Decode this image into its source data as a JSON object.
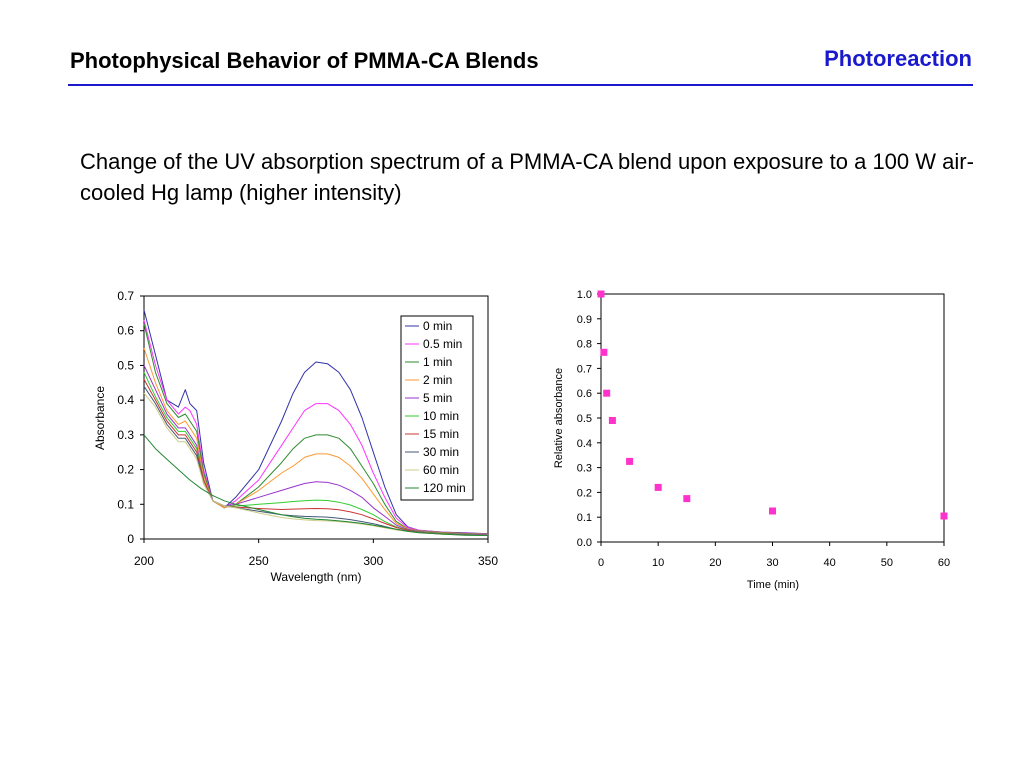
{
  "slide": {
    "title": "Photophysical Behavior of PMMA-CA Blends",
    "section_tag": "Photoreaction",
    "caption": "Change of the UV absorption spectrum of a PMMA-CA blend upon exposure to a 100 W air-cooled Hg lamp (higher intensity)",
    "accent_color": "#1a1acc"
  },
  "chart_data": [
    {
      "type": "line",
      "title": "",
      "xlabel": "Wavelength (nm)",
      "ylabel": "Absorbance",
      "xlim": [
        200,
        350
      ],
      "ylim": [
        0,
        0.7
      ],
      "xticks": [
        200,
        250,
        300,
        350
      ],
      "xtick_labels": [
        "200",
        "250",
        "300",
        "350"
      ],
      "yticks": [
        0,
        0.1,
        0.2,
        0.3,
        0.4,
        0.5,
        0.6,
        0.7
      ],
      "ytick_labels": [
        "0",
        "0.1",
        "0.2",
        "0.3",
        "0.4",
        "0.5",
        "0.6",
        "0.7"
      ],
      "grid": false,
      "legend_position": "top-right",
      "series": [
        {
          "name": "0 min",
          "color": "#3333aa",
          "x": [
            200,
            205,
            210,
            215,
            218,
            220,
            223,
            226,
            230,
            235,
            240,
            250,
            260,
            265,
            270,
            275,
            280,
            285,
            290,
            295,
            300,
            305,
            310,
            315,
            320,
            330,
            340,
            350
          ],
          "y": [
            0.66,
            0.53,
            0.4,
            0.38,
            0.43,
            0.39,
            0.37,
            0.22,
            0.11,
            0.09,
            0.12,
            0.2,
            0.34,
            0.42,
            0.48,
            0.51,
            0.505,
            0.48,
            0.43,
            0.35,
            0.25,
            0.15,
            0.07,
            0.035,
            0.025,
            0.02,
            0.018,
            0.015
          ]
        },
        {
          "name": "0.5 min",
          "color": "#ff33ff",
          "x": [
            200,
            205,
            210,
            215,
            218,
            220,
            223,
            226,
            230,
            235,
            240,
            250,
            260,
            265,
            270,
            275,
            280,
            285,
            290,
            295,
            300,
            305,
            310,
            315,
            320,
            330,
            340,
            350
          ],
          "y": [
            0.63,
            0.5,
            0.4,
            0.36,
            0.38,
            0.37,
            0.33,
            0.2,
            0.11,
            0.09,
            0.11,
            0.17,
            0.27,
            0.32,
            0.37,
            0.39,
            0.39,
            0.37,
            0.33,
            0.27,
            0.19,
            0.12,
            0.06,
            0.033,
            0.025,
            0.02,
            0.017,
            0.015
          ]
        },
        {
          "name": "1 min",
          "color": "#2e8b2e",
          "x": [
            200,
            205,
            210,
            215,
            218,
            220,
            223,
            226,
            230,
            235,
            240,
            250,
            260,
            265,
            270,
            275,
            280,
            285,
            290,
            295,
            300,
            305,
            310,
            315,
            320,
            330,
            340,
            350
          ],
          "y": [
            0.62,
            0.48,
            0.39,
            0.35,
            0.36,
            0.34,
            0.31,
            0.19,
            0.11,
            0.09,
            0.1,
            0.15,
            0.22,
            0.26,
            0.29,
            0.3,
            0.3,
            0.29,
            0.26,
            0.21,
            0.16,
            0.1,
            0.05,
            0.03,
            0.024,
            0.019,
            0.016,
            0.014
          ]
        },
        {
          "name": "2 min",
          "color": "#ff9933",
          "x": [
            200,
            205,
            210,
            215,
            218,
            220,
            223,
            226,
            230,
            235,
            240,
            250,
            260,
            265,
            270,
            275,
            280,
            285,
            290,
            295,
            300,
            305,
            310,
            315,
            320,
            330,
            340,
            350
          ],
          "y": [
            0.55,
            0.45,
            0.37,
            0.33,
            0.34,
            0.32,
            0.29,
            0.18,
            0.11,
            0.09,
            0.1,
            0.14,
            0.19,
            0.21,
            0.235,
            0.245,
            0.245,
            0.235,
            0.21,
            0.175,
            0.13,
            0.085,
            0.045,
            0.03,
            0.023,
            0.018,
            0.015,
            0.013
          ]
        },
        {
          "name": "5 min",
          "color": "#9933cc",
          "x": [
            200,
            205,
            210,
            215,
            218,
            220,
            223,
            226,
            230,
            235,
            240,
            250,
            260,
            265,
            270,
            275,
            280,
            285,
            290,
            295,
            300,
            305,
            310,
            315,
            320,
            330,
            340,
            350
          ],
          "y": [
            0.5,
            0.43,
            0.36,
            0.32,
            0.32,
            0.3,
            0.27,
            0.17,
            0.11,
            0.095,
            0.1,
            0.12,
            0.14,
            0.15,
            0.16,
            0.165,
            0.163,
            0.155,
            0.14,
            0.12,
            0.09,
            0.065,
            0.04,
            0.028,
            0.022,
            0.017,
            0.014,
            0.012
          ]
        },
        {
          "name": "10 min",
          "color": "#33cc33",
          "x": [
            200,
            205,
            210,
            215,
            218,
            220,
            223,
            226,
            230,
            235,
            240,
            250,
            260,
            265,
            270,
            275,
            280,
            285,
            290,
            295,
            300,
            305,
            310,
            315,
            320,
            330,
            340,
            350
          ],
          "y": [
            0.48,
            0.41,
            0.35,
            0.31,
            0.31,
            0.29,
            0.26,
            0.17,
            0.11,
            0.095,
            0.095,
            0.1,
            0.105,
            0.108,
            0.11,
            0.112,
            0.111,
            0.106,
            0.098,
            0.085,
            0.07,
            0.05,
            0.035,
            0.026,
            0.021,
            0.016,
            0.013,
            0.011
          ]
        },
        {
          "name": "15 min",
          "color": "#cc3333",
          "x": [
            200,
            205,
            210,
            215,
            218,
            220,
            223,
            226,
            230,
            235,
            240,
            250,
            260,
            265,
            270,
            275,
            280,
            285,
            290,
            295,
            300,
            305,
            310,
            315,
            320,
            330,
            340,
            350
          ],
          "y": [
            0.46,
            0.4,
            0.34,
            0.3,
            0.3,
            0.28,
            0.25,
            0.17,
            0.11,
            0.095,
            0.092,
            0.088,
            0.085,
            0.086,
            0.087,
            0.088,
            0.087,
            0.084,
            0.078,
            0.07,
            0.058,
            0.045,
            0.033,
            0.025,
            0.02,
            0.015,
            0.012,
            0.01
          ]
        },
        {
          "name": "30 min",
          "color": "#445577",
          "x": [
            200,
            205,
            210,
            215,
            218,
            220,
            223,
            226,
            230,
            235,
            240,
            250,
            260,
            265,
            270,
            275,
            280,
            285,
            290,
            295,
            300,
            305,
            310,
            315,
            320,
            330,
            340,
            350
          ],
          "y": [
            0.44,
            0.39,
            0.33,
            0.29,
            0.29,
            0.27,
            0.24,
            0.16,
            0.11,
            0.095,
            0.09,
            0.08,
            0.07,
            0.067,
            0.065,
            0.064,
            0.063,
            0.06,
            0.056,
            0.05,
            0.044,
            0.036,
            0.028,
            0.023,
            0.019,
            0.014,
            0.012,
            0.01
          ]
        },
        {
          "name": "60 min",
          "color": "#cccc88",
          "x": [
            200,
            205,
            210,
            215,
            218,
            220,
            223,
            226,
            230,
            235,
            240,
            250,
            260,
            265,
            270,
            275,
            280,
            285,
            290,
            295,
            300,
            305,
            310,
            315,
            320,
            330,
            340,
            350
          ],
          "y": [
            0.42,
            0.38,
            0.32,
            0.28,
            0.28,
            0.26,
            0.23,
            0.16,
            0.11,
            0.095,
            0.09,
            0.075,
            0.062,
            0.058,
            0.055,
            0.053,
            0.052,
            0.05,
            0.047,
            0.043,
            0.038,
            0.032,
            0.026,
            0.022,
            0.018,
            0.014,
            0.011,
            0.01
          ]
        },
        {
          "name": "120 min",
          "color": "#228833",
          "x": [
            200,
            205,
            210,
            215,
            220,
            225,
            230,
            235,
            240,
            250,
            260,
            265,
            270,
            275,
            280,
            285,
            290,
            295,
            300,
            305,
            310,
            315,
            320,
            330,
            340,
            350
          ],
          "y": [
            0.3,
            0.26,
            0.23,
            0.2,
            0.17,
            0.145,
            0.125,
            0.11,
            0.1,
            0.085,
            0.07,
            0.064,
            0.06,
            0.057,
            0.055,
            0.052,
            0.049,
            0.045,
            0.04,
            0.034,
            0.028,
            0.022,
            0.018,
            0.014,
            0.011,
            0.01
          ]
        }
      ]
    },
    {
      "type": "scatter",
      "title": "",
      "xlabel": "Time (min)",
      "ylabel": "Relative absorbance",
      "x_categories": [
        "0",
        "10",
        "20",
        "30",
        "40",
        "50",
        "60"
      ],
      "xlim": [
        0,
        60
      ],
      "ylim": [
        0,
        1
      ],
      "yticks": [
        0,
        0.1,
        0.2,
        0.3,
        0.4,
        0.5,
        0.6,
        0.7,
        0.8,
        0.9,
        1.0
      ],
      "ytick_labels": [
        "0.0",
        "0.1",
        "0.2",
        "0.3",
        "0.4",
        "0.5",
        "0.6",
        "0.7",
        "0.8",
        "0.9",
        "1.0"
      ],
      "grid": false,
      "marker_color": "#ff33cc",
      "x": [
        0,
        0.5,
        1,
        2,
        5,
        10,
        15,
        30,
        60
      ],
      "y": [
        1.0,
        0.765,
        0.6,
        0.49,
        0.325,
        0.22,
        0.175,
        0.125,
        0.105
      ]
    }
  ]
}
